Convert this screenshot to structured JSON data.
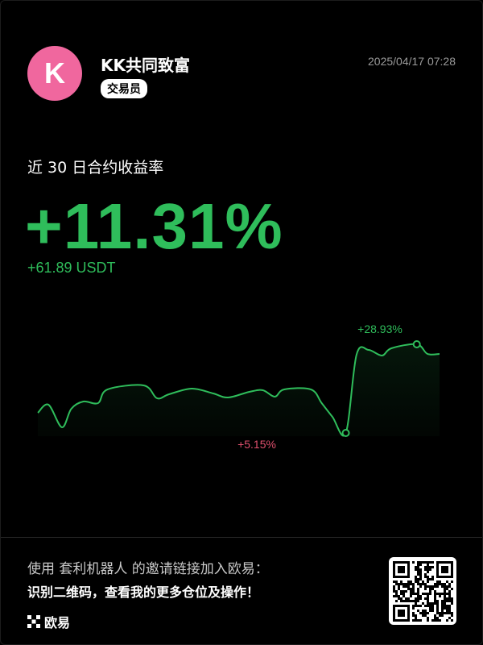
{
  "header": {
    "avatar_letter": "K",
    "name": "KK共同致富",
    "badge": "交易员",
    "timestamp": "2025/04/17 07:28"
  },
  "summary": {
    "label": "近 30 日合约收益率",
    "return_pct": "+11.31%",
    "pnl": "+61.89 USDT"
  },
  "chart_data": {
    "type": "area",
    "xlabel": "",
    "ylabel": "",
    "annotations": {
      "max": "+28.93%",
      "min": "+5.15%"
    },
    "max_value": 28.93,
    "min_value": 5.15,
    "grid": false,
    "colors": {
      "line": "#2fbd5b",
      "min_label": "#e0506e",
      "max_label": "#2fbd5b"
    },
    "points": [
      [
        0,
        10.56
      ],
      [
        0.8,
        12.72
      ],
      [
        1.8,
        6.66
      ],
      [
        2.5,
        11.64
      ],
      [
        3.4,
        13.58
      ],
      [
        4.5,
        13.15
      ],
      [
        5.2,
        16.82
      ],
      [
        7.9,
        17.91
      ],
      [
        8.9,
        14.45
      ],
      [
        9.8,
        15.53
      ],
      [
        11.5,
        17.04
      ],
      [
        13.1,
        15.74
      ],
      [
        14.2,
        14.66
      ],
      [
        15.8,
        16.18
      ],
      [
        16.8,
        16.61
      ],
      [
        17.7,
        14.88
      ],
      [
        18.4,
        16.82
      ],
      [
        20.4,
        16.82
      ],
      [
        21.2,
        13.15
      ],
      [
        22.0,
        9.47
      ],
      [
        23.0,
        5.15
      ],
      [
        23.8,
        26.12
      ],
      [
        24.7,
        27.42
      ],
      [
        25.7,
        25.91
      ],
      [
        26.4,
        27.85
      ],
      [
        28.3,
        28.93
      ],
      [
        29.1,
        26.34
      ],
      [
        30,
        26.34
      ]
    ]
  },
  "footer": {
    "invite": "使用 套利机器人 的邀请链接加入欧易：",
    "scan": "识别二维码，查看我的更多仓位及操作！",
    "brand": "欧易"
  }
}
